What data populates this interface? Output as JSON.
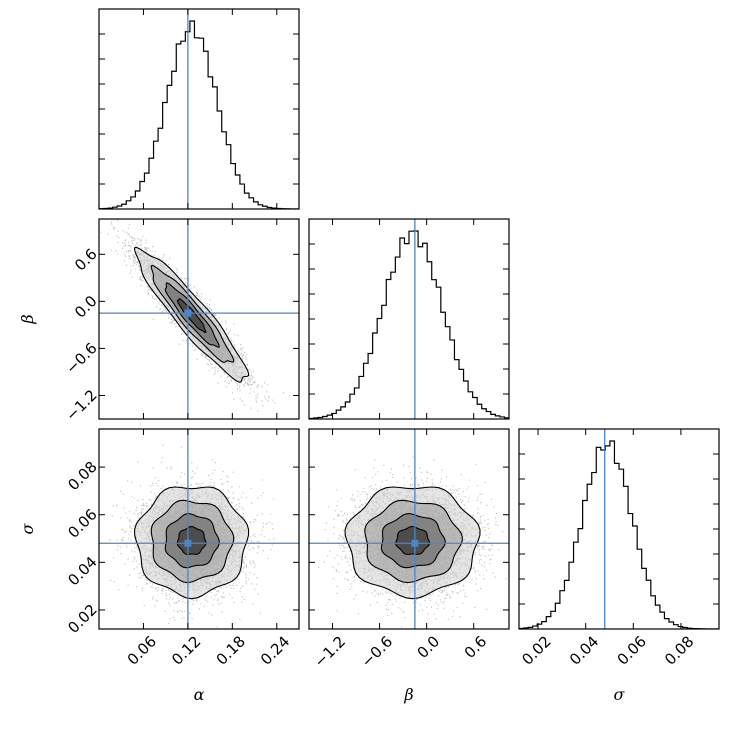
{
  "chart_data": {
    "type": "corner",
    "parameters": [
      {
        "name": "α",
        "label": "α",
        "truth": 0.12,
        "range": [
          0.0,
          0.27
        ],
        "ticks": [
          0.06,
          0.12,
          0.18,
          0.24
        ],
        "tick_labels": [
          "0.06",
          "0.12",
          "0.18",
          "0.24"
        ],
        "hist": {
          "mean": 0.125,
          "sd": 0.034,
          "ref_mean": 0.12
        }
      },
      {
        "name": "β",
        "label": "β",
        "truth": -0.15,
        "range": [
          -1.5,
          1.05
        ],
        "ticks": [
          -1.2,
          -0.6,
          0.0,
          0.6
        ],
        "tick_labels": [
          "−1.2",
          "−0.6",
          "0.0",
          "0.6"
        ],
        "hist": {
          "mean": -0.18,
          "sd": 0.38,
          "ref_mean": -0.15
        }
      },
      {
        "name": "σ",
        "label": "σ",
        "truth": 0.048,
        "range": [
          0.012,
          0.096
        ],
        "ticks": [
          0.02,
          0.04,
          0.06,
          0.08
        ],
        "tick_labels": [
          "0.02",
          "0.04",
          "0.06",
          "0.08"
        ],
        "hist": {
          "mean": 0.049,
          "sd": 0.0105,
          "ref_mean": 0.048
        }
      }
    ],
    "pairs": [
      {
        "x": "α",
        "y": "β",
        "correlation": -0.93
      },
      {
        "x": "α",
        "y": "σ",
        "correlation": 0.0
      },
      {
        "x": "β",
        "y": "σ",
        "correlation": 0.0
      }
    ],
    "samples_drawn": 5000,
    "truth_line_color": "#4a86c8",
    "contour_color": "#000000",
    "grid": false
  }
}
